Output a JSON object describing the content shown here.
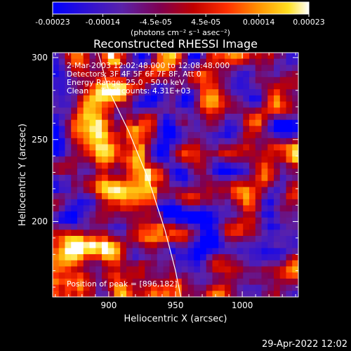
{
  "colorbar": {
    "tick_labels": [
      "-0.00023",
      "-0.00014",
      "-4.5e-05",
      "4.5e-05",
      "0.00014",
      "0.00023"
    ],
    "units_label": "(photons cm⁻² s⁻¹ asec⁻²)"
  },
  "chart_data": {
    "type": "heatmap",
    "title": "Reconstructed RHESSI Image",
    "xlabel": "Heliocentric X (arcsec)",
    "ylabel": "Heliocentric Y (arcsec)",
    "xlim": [
      858,
      1042
    ],
    "ylim": [
      154,
      303
    ],
    "xticks": [
      900,
      950,
      1000
    ],
    "yticks": [
      200,
      250,
      300
    ],
    "value_range": [
      -0.00023,
      0.00023
    ],
    "colormap": "blue-purple-red-orange-yellow-white",
    "info_lines": [
      "2-Mar-2003 12:02:48.000 to 12:08:48.000",
      "Detectors: 3F 4F 5F 6F 7F 8F, Att 0",
      "Energy Range: 25.0 - 50.0 keV",
      "Clean     Total counts: 4.31E+03"
    ],
    "peak_label": "Position of peak = [896,182]",
    "peak_position": [
      896,
      182
    ],
    "limb_points": [
      [
        892,
        303
      ],
      [
        900,
        280
      ],
      [
        915,
        255
      ],
      [
        930,
        225
      ],
      [
        942,
        195
      ],
      [
        950,
        170
      ],
      [
        954,
        154
      ]
    ]
  },
  "footer": {
    "date": "29-Apr-2022 12:02"
  }
}
